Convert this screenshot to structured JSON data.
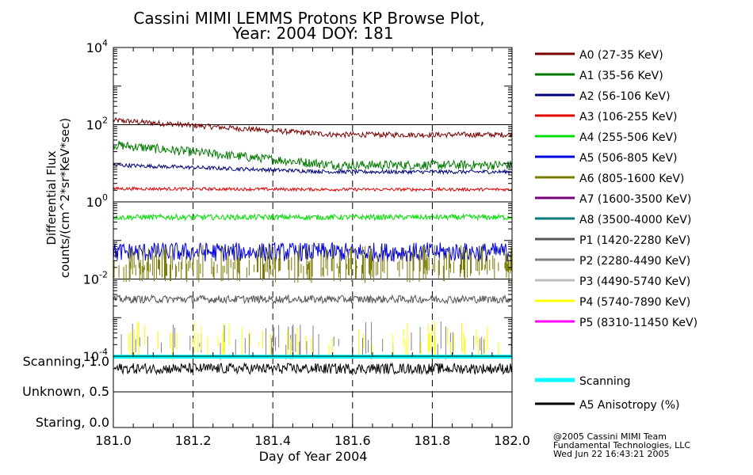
{
  "chart_data": {
    "type": "line",
    "title": "Cassini MIMI LEMMS Protons KP Browse Plot,",
    "subtitle": "Year: 2004 DOY: 181",
    "xlabel": "Day of Year 2004",
    "ylabel_line1": "Differential Flux",
    "ylabel_line2": "counts/(cm^2*sr*KeV*sec)",
    "x_range": [
      181.0,
      182.0
    ],
    "x_ticks": [
      "181.0",
      "181.2",
      "181.4",
      "181.6",
      "181.8",
      "182.0"
    ],
    "y_scale": "log",
    "y_range": [
      0.0001,
      10000
    ],
    "y_ticks": [
      {
        "value": 10000,
        "base": "10",
        "exp": "4"
      },
      {
        "value": 100,
        "base": "10",
        "exp": "2"
      },
      {
        "value": 1,
        "base": "10",
        "exp": "0"
      },
      {
        "value": 0.01,
        "base": "10",
        "exp": "-2"
      },
      {
        "value": 0.0001,
        "base": "10",
        "exp": "-4"
      }
    ],
    "vertical_dashed_lines": [
      181.2,
      181.4,
      181.6,
      181.8
    ],
    "series": [
      {
        "name": "A0 (27-35 KeV)",
        "color": "#7a0000",
        "start": 130,
        "end": 55,
        "jitter": 0.07
      },
      {
        "name": "A1 (35-56 KeV)",
        "color": "#007a00",
        "start": 30,
        "end": 9,
        "jitter": 0.12
      },
      {
        "name": "A2 (56-106 KeV)",
        "color": "#00007a",
        "start": 9,
        "end": 6,
        "jitter": 0.05
      },
      {
        "name": "A3 (106-255 KeV)",
        "color": "#e00000",
        "start": 2.2,
        "end": 2.1,
        "jitter": 0.04
      },
      {
        "name": "A4 (255-506 KeV)",
        "color": "#00e000",
        "start": 0.4,
        "end": 0.4,
        "jitter": 0.07
      },
      {
        "name": "A5 (506-805 KeV)",
        "color": "#0000e0",
        "start": 0.05,
        "end": 0.05,
        "jitter": 0.25
      },
      {
        "name": "A6 (805-1600 KeV)",
        "color": "#7a7a00",
        "start": 0.02,
        "end": 0.02,
        "jitter": 0.25
      },
      {
        "name": "A7 (1600-3500 KeV)",
        "color": "#7a007a",
        "start": null,
        "end": null,
        "jitter": 0
      },
      {
        "name": "A8 (3500-4000 KeV)",
        "color": "#007a7a",
        "start": null,
        "end": null,
        "jitter": 0
      },
      {
        "name": "P1 (1420-2280 KeV)",
        "color": "#555555",
        "start": 0.003,
        "end": 0.003,
        "jitter": 0.1
      },
      {
        "name": "P2 (2280-4490 KeV)",
        "color": "#808080",
        "start": 0.0002,
        "end": 0.0002,
        "jitter": 0.15
      },
      {
        "name": "P3 (4490-5740 KeV)",
        "color": "#bbbbbb",
        "start": null,
        "end": null,
        "jitter": 0
      },
      {
        "name": "P4 (5740-7890 KeV)",
        "color": "#ffff00",
        "start": 0.0002,
        "end": 0.0002,
        "jitter": 0.15
      },
      {
        "name": "P5 (8310-11450 KeV)",
        "color": "#ff00ff",
        "start": null,
        "end": null,
        "jitter": 0
      }
    ],
    "lower_panel": {
      "y_labels": [
        "Scanning, 1.0",
        "Unknown, 0.5",
        "Staring, 0.0"
      ],
      "y_values": [
        1.0,
        0.5,
        0.0
      ],
      "series": [
        {
          "name": "Scanning",
          "color": "#00ffff",
          "value": 1.0
        },
        {
          "name": "A5 Anisotropy (%)",
          "color": "#000000",
          "value": 0.85
        }
      ]
    }
  },
  "footer": {
    "line1": "@2005 Cassini MIMI Team",
    "line2": "Fundamental Technologies, LLC",
    "line3": "Wed Jun 22 16:43:21 2005"
  }
}
